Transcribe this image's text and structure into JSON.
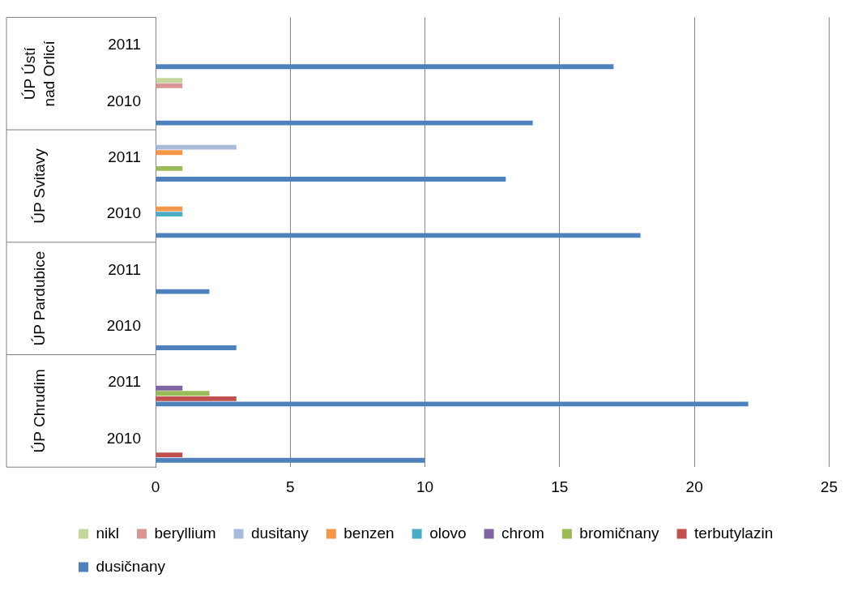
{
  "chart_data": {
    "type": "bar",
    "orientation": "horizontal",
    "categories": [
      "2011",
      "2010",
      "2011",
      "2010",
      "2011",
      "2010",
      "2011",
      "2010"
    ],
    "annotations": [
      "ÚP Ústí nad Orlicí",
      "ÚP Svitavy",
      "ÚP Pardubice",
      "ÚP Chrudim"
    ],
    "series": [
      {
        "name": "nikl",
        "color": "#c3d69b",
        "values": [
          null,
          1,
          null,
          null,
          null,
          null,
          null,
          null
        ]
      },
      {
        "name": "beryllium",
        "color": "#d99694",
        "values": [
          null,
          1,
          null,
          null,
          null,
          null,
          null,
          null
        ]
      },
      {
        "name": "dusitany",
        "color": "#a9b9da",
        "values": [
          null,
          null,
          3,
          null,
          null,
          null,
          null,
          null
        ]
      },
      {
        "name": "benzen",
        "color": "#f79646",
        "values": [
          null,
          null,
          1,
          1,
          null,
          null,
          null,
          null
        ]
      },
      {
        "name": "olovo",
        "color": "#4bacc6",
        "values": [
          null,
          null,
          null,
          1,
          null,
          null,
          null,
          null
        ]
      },
      {
        "name": "chrom",
        "color": "#8064a2",
        "values": [
          null,
          null,
          null,
          null,
          null,
          null,
          1,
          null
        ]
      },
      {
        "name": "bromičnany",
        "color": "#9bbb59",
        "values": [
          null,
          null,
          1,
          null,
          null,
          null,
          2,
          null
        ]
      },
      {
        "name": "terbutylazin",
        "color": "#c0504d",
        "values": [
          null,
          null,
          null,
          null,
          null,
          null,
          3,
          1
        ]
      },
      {
        "name": "dusičnany",
        "color": "#4f81bd",
        "values": [
          17,
          14,
          13,
          18,
          2,
          3,
          22,
          10
        ]
      }
    ],
    "xlim": [
      0,
      25
    ],
    "xticks": [
      0,
      5,
      10,
      15,
      20,
      25
    ],
    "grid": "x",
    "legend": "bottom"
  }
}
